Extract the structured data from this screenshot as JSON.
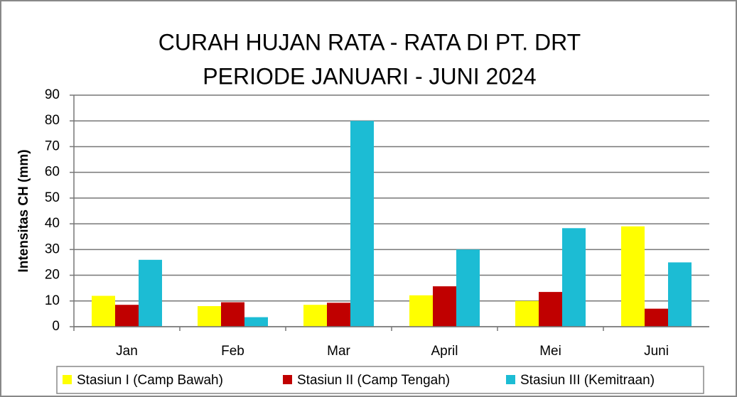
{
  "chart_data": {
    "type": "bar",
    "title": [
      "CURAH HUJAN RATA - RATA DI PT. DRT",
      "PERIODE JANUARI - JUNI 2024"
    ],
    "y_label": "Intensitas CH (mm)",
    "categories": [
      "Jan",
      "Feb",
      "Mar",
      "April",
      "Mei",
      "Juni"
    ],
    "series": [
      {
        "name": "Stasiun I (Camp Bawah)",
        "color": "#ffff00",
        "values": [
          12,
          8,
          8.5,
          12.2,
          10,
          39
        ]
      },
      {
        "name": "Stasiun II (Camp Tengah)",
        "color": "#c00000",
        "values": [
          8.5,
          9.5,
          9.3,
          15.7,
          13.5,
          7
        ]
      },
      {
        "name": "Stasiun III (Kemitraan)",
        "color": "#1cbcd4",
        "values": [
          26,
          3.7,
          80,
          30,
          38.3,
          25
        ]
      }
    ],
    "ylim": [
      0,
      90
    ],
    "yticks": [
      0,
      10,
      20,
      30,
      40,
      50,
      60,
      70,
      80,
      90
    ],
    "grid": true,
    "legend": "bottom"
  }
}
